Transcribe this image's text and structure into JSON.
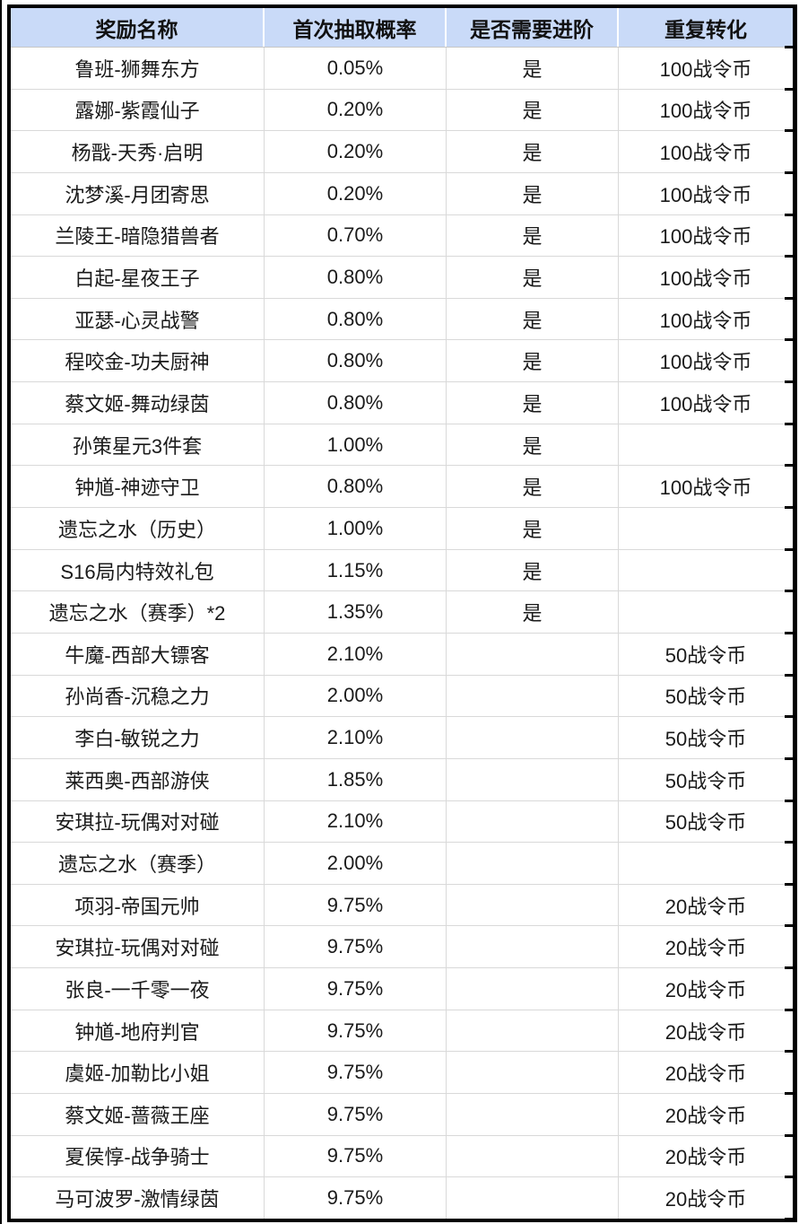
{
  "table": {
    "headers": [
      "奖励名称",
      "首次抽取概率",
      "是否需要进阶",
      "重复转化"
    ],
    "rows": [
      [
        "鲁班-狮舞东方",
        "0.05%",
        "是",
        "100战令币"
      ],
      [
        "露娜-紫霞仙子",
        "0.20%",
        "是",
        "100战令币"
      ],
      [
        "杨戬-天秀·启明",
        "0.20%",
        "是",
        "100战令币"
      ],
      [
        "沈梦溪-月团寄思",
        "0.20%",
        "是",
        "100战令币"
      ],
      [
        "兰陵王-暗隐猎兽者",
        "0.70%",
        "是",
        "100战令币"
      ],
      [
        "白起-星夜王子",
        "0.80%",
        "是",
        "100战令币"
      ],
      [
        "亚瑟-心灵战警",
        "0.80%",
        "是",
        "100战令币"
      ],
      [
        "程咬金-功夫厨神",
        "0.80%",
        "是",
        "100战令币"
      ],
      [
        "蔡文姬-舞动绿茵",
        "0.80%",
        "是",
        "100战令币"
      ],
      [
        "孙策星元3件套",
        "1.00%",
        "是",
        ""
      ],
      [
        "钟馗-神迹守卫",
        "0.80%",
        "是",
        "100战令币"
      ],
      [
        "遗忘之水（历史）",
        "1.00%",
        "是",
        ""
      ],
      [
        "S16局内特效礼包",
        "1.15%",
        "是",
        ""
      ],
      [
        "遗忘之水（赛季）*2",
        "1.35%",
        "是",
        ""
      ],
      [
        "牛魔-西部大镖客",
        "2.10%",
        "",
        "50战令币"
      ],
      [
        "孙尚香-沉稳之力",
        "2.00%",
        "",
        "50战令币"
      ],
      [
        "李白-敏锐之力",
        "2.10%",
        "",
        "50战令币"
      ],
      [
        "莱西奥-西部游侠",
        "1.85%",
        "",
        "50战令币"
      ],
      [
        "安琪拉-玩偶对对碰",
        "2.10%",
        "",
        "50战令币"
      ],
      [
        "遗忘之水（赛季）",
        "2.00%",
        "",
        ""
      ],
      [
        "项羽-帝国元帅",
        "9.75%",
        "",
        "20战令币"
      ],
      [
        "安琪拉-玩偶对对碰",
        "9.75%",
        "",
        "20战令币"
      ],
      [
        "张良-一千零一夜",
        "9.75%",
        "",
        "20战令币"
      ],
      [
        "钟馗-地府判官",
        "9.75%",
        "",
        "20战令币"
      ],
      [
        "虞姬-加勒比小姐",
        "9.75%",
        "",
        "20战令币"
      ],
      [
        "蔡文姬-蔷薇王座",
        "9.75%",
        "",
        "20战令币"
      ],
      [
        "夏侯惇-战争骑士",
        "9.75%",
        "",
        "20战令币"
      ],
      [
        "马可波罗-激情绿茵",
        "9.75%",
        "",
        "20战令币"
      ]
    ]
  },
  "colors": {
    "header_bg": "#c9daf8",
    "outer_border": "#000000",
    "grid_line": "#d9d9d9",
    "text": "#1a1a1a"
  }
}
